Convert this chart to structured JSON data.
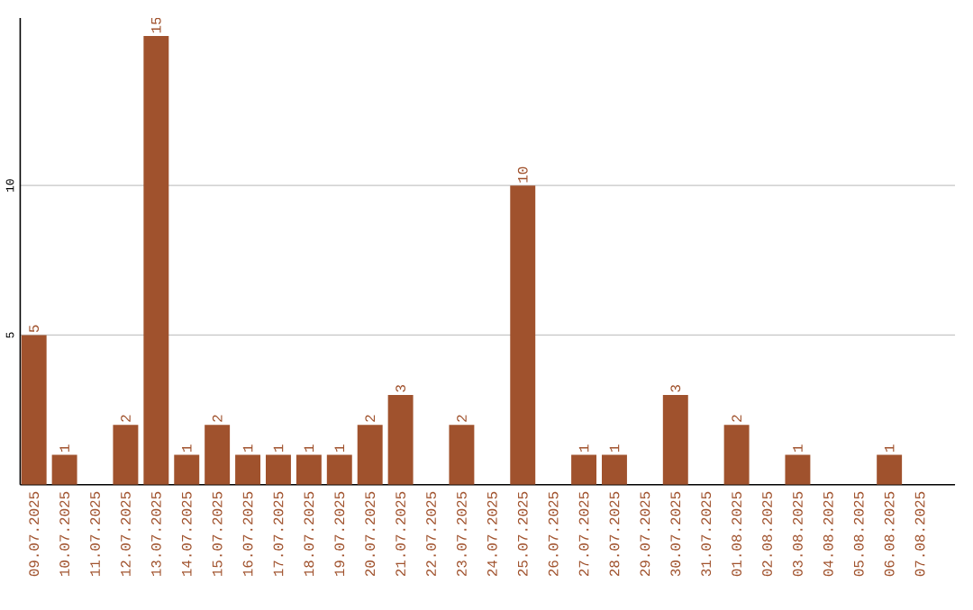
{
  "chart_data": {
    "type": "bar",
    "categories": [
      "09.07.2025",
      "10.07.2025",
      "11.07.2025",
      "12.07.2025",
      "13.07.2025",
      "14.07.2025",
      "15.07.2025",
      "16.07.2025",
      "17.07.2025",
      "18.07.2025",
      "19.07.2025",
      "20.07.2025",
      "21.07.2025",
      "22.07.2025",
      "23.07.2025",
      "24.07.2025",
      "25.07.2025",
      "26.07.2025",
      "27.07.2025",
      "28.07.2025",
      "29.07.2025",
      "30.07.2025",
      "31.07.2025",
      "01.08.2025",
      "02.08.2025",
      "03.08.2025",
      "04.08.2025",
      "05.08.2025",
      "06.08.2025",
      "07.08.2025"
    ],
    "values": [
      5,
      1,
      0,
      2,
      15,
      1,
      2,
      1,
      1,
      1,
      1,
      2,
      3,
      0,
      2,
      0,
      10,
      0,
      1,
      1,
      0,
      3,
      0,
      2,
      0,
      1,
      0,
      0,
      1,
      0
    ],
    "value_labels": [
      "5",
      "1",
      null,
      "2",
      "15",
      "1",
      "2",
      "1",
      "1",
      "1",
      "1",
      "2",
      "3",
      null,
      "2",
      null,
      "10",
      null,
      "1",
      "1",
      null,
      "3",
      null,
      "2",
      null,
      "1",
      null,
      null,
      "1",
      null
    ],
    "color": "#a0522d",
    "ylim": [
      0,
      15.6
    ],
    "yticks": [
      5,
      10
    ],
    "grid": "y"
  }
}
